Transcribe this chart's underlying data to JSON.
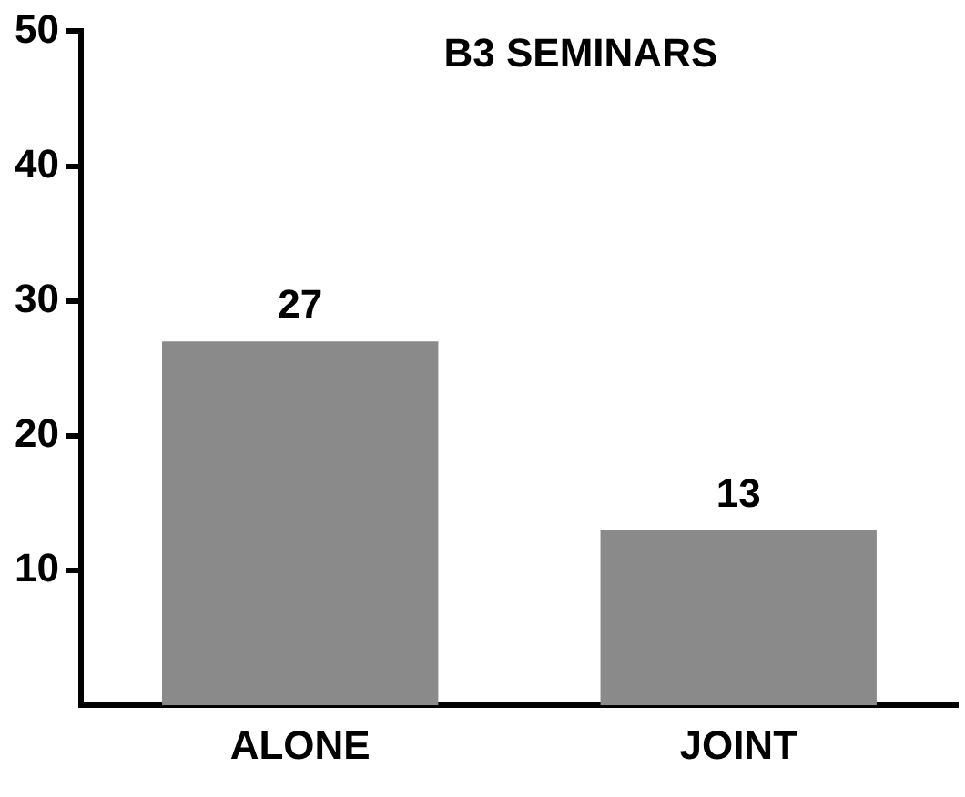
{
  "chart_data": {
    "type": "bar",
    "title": "B3 SEMINARS",
    "categories": [
      "ALONE",
      "JOINT"
    ],
    "values": [
      27,
      13
    ],
    "color": "#8a8a8a",
    "ylim": [
      0,
      50
    ],
    "yticks": [
      10,
      20,
      30,
      40,
      50
    ],
    "grid": false,
    "data_labels": true,
    "legend": false
  }
}
